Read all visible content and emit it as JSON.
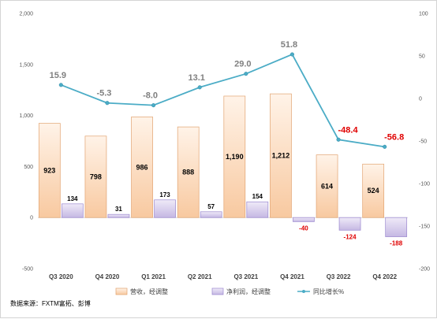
{
  "chart_data": {
    "type": "bar+line",
    "categories": [
      "Q3 2020",
      "Q4 2020",
      "Q1 2021",
      "Q2 2021",
      "Q3 2021",
      "Q4 2021",
      "Q3 2022",
      "Q4 2022"
    ],
    "series": [
      {
        "name": "营收，经调整",
        "type": "bar",
        "axis": "left",
        "color": "#f8c9a0",
        "values": [
          923,
          798,
          986,
          888,
          1190,
          1212,
          614,
          524
        ],
        "labels": [
          "923",
          "798",
          "986",
          "888",
          "1,190",
          "1,212",
          "614",
          "524"
        ]
      },
      {
        "name": "净利润，经调整",
        "type": "bar",
        "axis": "left",
        "color": "#c5b8e3",
        "values": [
          134,
          31,
          173,
          57,
          154,
          -40,
          -124,
          -188
        ],
        "labels": [
          "134",
          "31",
          "173",
          "57",
          "154",
          "-40",
          "-124",
          "-188"
        ]
      },
      {
        "name": "同比增长%",
        "type": "line",
        "axis": "right",
        "color": "#4bacc6",
        "values": [
          15.9,
          -5.3,
          -8.0,
          13.1,
          29.0,
          51.8,
          -48.4,
          -56.8
        ],
        "labels": [
          "15.9",
          "-5.3",
          "-8.0",
          "13.1",
          "29.0",
          "51.8",
          "-48.4",
          "-56.8"
        ]
      }
    ],
    "y_left": {
      "min": -500,
      "max": 2000,
      "ticks": [
        -500,
        0,
        500,
        1000,
        1500,
        2000
      ],
      "tick_labels": [
        "-500",
        "0",
        "500",
        "1,000",
        "1,500",
        "2,000"
      ]
    },
    "y_right": {
      "min": -200,
      "max": 100,
      "ticks": [
        -200,
        -150,
        -100,
        -50,
        0,
        50,
        100
      ],
      "tick_labels": [
        "-200",
        "-150",
        "-100",
        "-50",
        "0",
        "50",
        "100"
      ]
    },
    "grid": false,
    "legend_position": "bottom",
    "source_note": "数据来源：FXTM富拓、彭博"
  }
}
